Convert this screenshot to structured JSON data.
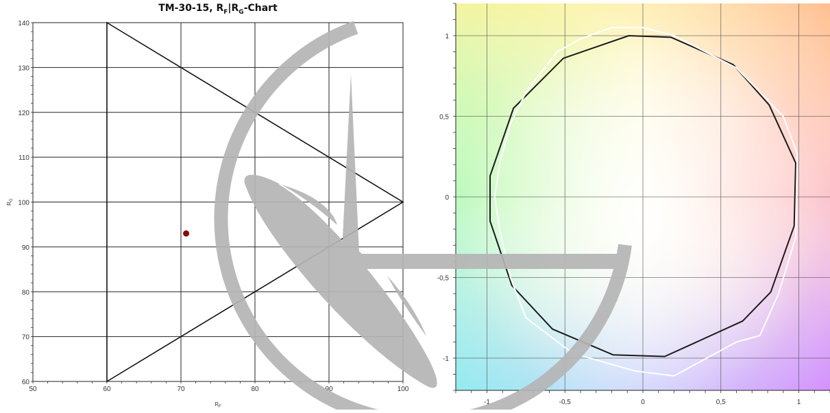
{
  "chart_data": [
    {
      "type": "scatter",
      "title_main": "TM-30-15, R",
      "title_f": "F",
      "title_sep": "|R",
      "title_g": "G",
      "title_tail": "-Chart",
      "xlabel_main": "R",
      "xlabel_sub": "F",
      "ylabel_main": "R",
      "ylabel_sub": "G",
      "xlim": [
        50,
        100
      ],
      "ylim": [
        60,
        140
      ],
      "xticks": [
        50,
        60,
        70,
        80,
        90,
        100
      ],
      "yticks": [
        60,
        70,
        80,
        90,
        100,
        110,
        120,
        130,
        140
      ],
      "grid": true,
      "boundary": [
        [
          60,
          140
        ],
        [
          100,
          100
        ],
        [
          60,
          60
        ]
      ],
      "points": [
        {
          "x": 70.7,
          "y": 93
        }
      ],
      "point_color": "#8b0a0a"
    },
    {
      "type": "line",
      "xlim": [
        -1.2,
        1.2
      ],
      "ylim": [
        -1.2,
        1.2
      ],
      "xticks": [
        -1,
        -0.5,
        0,
        0.5,
        1
      ],
      "xtick_labels": [
        "-1",
        "-0,5",
        "0",
        "0,5",
        "1"
      ],
      "yticks": [
        -1,
        -0.5,
        0,
        0.5,
        1
      ],
      "ytick_labels": [
        "-1",
        "-0,5",
        "0",
        "0,5",
        "1"
      ],
      "grid": true,
      "series": [
        {
          "color": "#1a1a1a",
          "points": [
            [
              0.98,
              0.21
            ],
            [
              0.81,
              0.57
            ],
            [
              0.58,
              0.82
            ],
            [
              0.18,
              0.99
            ],
            [
              -0.09,
              1.0
            ],
            [
              -0.51,
              0.86
            ],
            [
              -0.83,
              0.55
            ],
            [
              -0.98,
              0.13
            ],
            [
              -0.98,
              -0.15
            ],
            [
              -0.84,
              -0.55
            ],
            [
              -0.58,
              -0.82
            ],
            [
              -0.19,
              -0.98
            ],
            [
              0.14,
              -0.99
            ],
            [
              0.64,
              -0.77
            ],
            [
              0.82,
              -0.59
            ],
            [
              0.97,
              -0.18
            ]
          ]
        },
        {
          "color": "#ffffff",
          "points": [
            [
              0.99,
              0.27
            ],
            [
              0.9,
              0.5
            ],
            [
              0.6,
              0.8
            ],
            [
              0.2,
              1.0
            ],
            [
              0,
              1.05
            ],
            [
              -0.2,
              1.05
            ],
            [
              -0.4,
              0.98
            ],
            [
              -0.55,
              0.9
            ],
            [
              -0.75,
              0.65
            ],
            [
              -0.85,
              0.45
            ],
            [
              -0.92,
              0.2
            ],
            [
              -0.95,
              0.0
            ],
            [
              -0.92,
              -0.2
            ],
            [
              -0.85,
              -0.5
            ],
            [
              -0.75,
              -0.75
            ],
            [
              -0.45,
              -0.97
            ],
            [
              -0.05,
              -1.08
            ],
            [
              0.2,
              -1.11
            ],
            [
              0.6,
              -0.9
            ],
            [
              0.75,
              -0.86
            ],
            [
              0.87,
              -0.6
            ],
            [
              0.98,
              -0.25
            ]
          ]
        }
      ]
    }
  ],
  "watermark": {
    "color": "#b5b5b5"
  }
}
